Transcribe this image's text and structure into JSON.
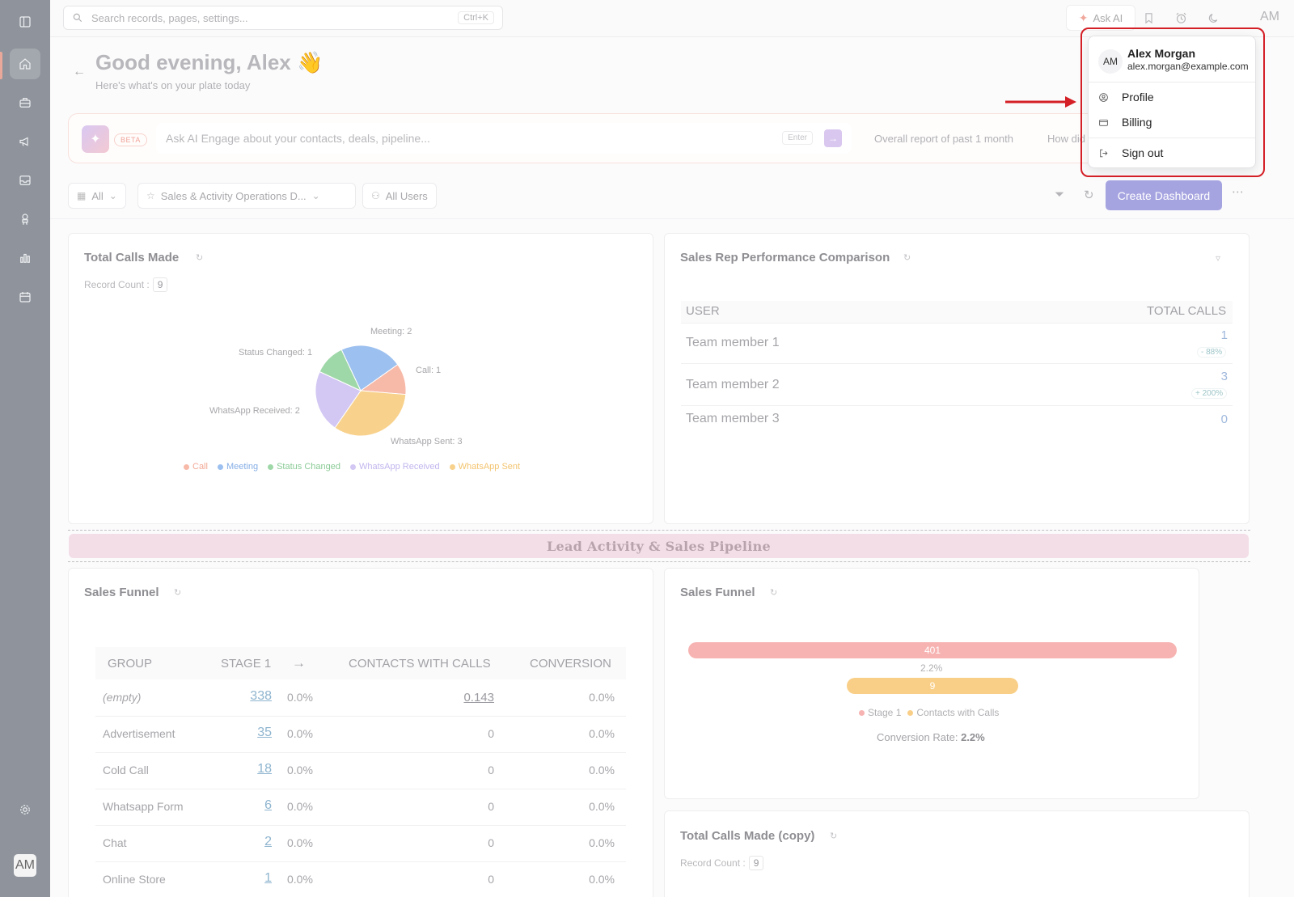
{
  "topbar": {
    "search_placeholder": "Search records, pages, settings...",
    "search_shortcut": "Ctrl+K",
    "ask_ai_label": "Ask AI",
    "avatar_initials": "AM"
  },
  "sidebar": {
    "items": [
      "sidebar-toggle",
      "home",
      "briefcase",
      "megaphone",
      "inbox",
      "presentation",
      "bar-chart",
      "calendar"
    ],
    "active": "home",
    "avatar_initials": "AM"
  },
  "greeting": {
    "title": "Good evening, Alex 👋",
    "subtitle": "Here's what's on your plate today"
  },
  "ai_bar": {
    "beta_label": "BETA",
    "placeholder": "Ask AI Engage about your contacts, deals, pipeline...",
    "enter_label": "Enter",
    "suggestion_1": "Overall report of past 1 month",
    "suggestion_2": "How did"
  },
  "filters": {
    "all_label": "All",
    "dashboard_label": "Sales & Activity Operations D...",
    "users_label": "All Users",
    "create_button": "Create Dashboard"
  },
  "total_calls": {
    "title": "Total Calls Made",
    "record_count_label": "Record Count :",
    "record_count": "9",
    "labels": {
      "meeting": "Meeting: 2",
      "status_changed": "Status Changed: 1",
      "call": "Call: 1",
      "whatsapp_received": "WhatsApp Received: 2",
      "whatsapp_sent": "WhatsApp Sent: 3"
    },
    "legend": [
      "Call",
      "Meeting",
      "Status Changed",
      "WhatsApp Received",
      "WhatsApp Sent"
    ]
  },
  "chart_data": {
    "type": "pie",
    "title": "Total Calls Made",
    "categories": [
      "Call",
      "Meeting",
      "Status Changed",
      "WhatsApp Received",
      "WhatsApp Sent"
    ],
    "values": [
      1,
      2,
      1,
      2,
      3
    ],
    "colors": [
      "#f7b9a8",
      "#9cc0ef",
      "#9fd8a8",
      "#d3c7f3",
      "#f8d28c"
    ]
  },
  "rep_performance": {
    "title": "Sales Rep Performance Comparison",
    "col_user": "USER",
    "col_total": "TOTAL CALLS",
    "rows": [
      {
        "name": "Team member 1",
        "value": "1",
        "pct": "- 88%"
      },
      {
        "name": "Team member 2",
        "value": "3",
        "pct": "+ 200%"
      },
      {
        "name": "Team member 3",
        "value": "0",
        "pct": ""
      }
    ]
  },
  "section_banner": "Lead Activity & Sales Pipeline",
  "sales_funnel_table": {
    "title": "Sales Funnel",
    "headers": {
      "group": "GROUP",
      "stage1": "STAGE 1",
      "arrow": "→",
      "contacts": "CONTACTS WITH CALLS",
      "conversion": "CONVERSION"
    },
    "rows": [
      {
        "group": "(empty)",
        "stage1": "338",
        "pct": "0.0%",
        "contacts": "0.143",
        "conversion": "0.0%"
      },
      {
        "group": "Advertisement",
        "stage1": "35",
        "pct": "0.0%",
        "contacts": "0",
        "conversion": "0.0%"
      },
      {
        "group": "Cold Call",
        "stage1": "18",
        "pct": "0.0%",
        "contacts": "0",
        "conversion": "0.0%"
      },
      {
        "group": "Whatsapp Form",
        "stage1": "6",
        "pct": "0.0%",
        "contacts": "0",
        "conversion": "0.0%"
      },
      {
        "group": "Chat",
        "stage1": "2",
        "pct": "0.0%",
        "contacts": "0",
        "conversion": "0.0%"
      },
      {
        "group": "Online Store",
        "stage1": "1",
        "pct": "0.0%",
        "contacts": "0",
        "conversion": "0.0%"
      }
    ]
  },
  "sales_funnel_chart": {
    "title": "Sales Funnel",
    "bar1_value": "401",
    "between_pct": "2.2%",
    "bar2_value": "9",
    "legend_stage": "Stage 1",
    "legend_contacts": "Contacts with Calls",
    "conversion_label": "Conversion Rate:",
    "conversion_value": "2.2%"
  },
  "total_calls_copy": {
    "title": "Total Calls Made (copy)",
    "record_count_label": "Record Count :",
    "record_count": "9"
  },
  "user_menu": {
    "initials": "AM",
    "name": "Alex Morgan",
    "email": "alex.morgan@example.com",
    "items": {
      "profile": "Profile",
      "billing": "Billing",
      "sign_out": "Sign out"
    }
  },
  "colors": {
    "highlight_red": "#d41f26",
    "create_button": "#a6a4e0"
  }
}
